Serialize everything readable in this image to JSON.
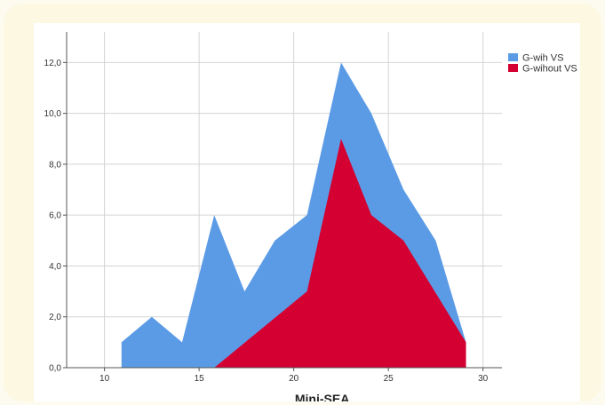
{
  "chart_data": {
    "type": "area",
    "xlabel": "Mini-SEA",
    "ylabel": "",
    "xlim": [
      8,
      31
    ],
    "ylim": [
      0,
      13.2
    ],
    "xticks": [
      "10",
      "15",
      "20",
      "25",
      "30"
    ],
    "xtick_values": [
      10,
      15,
      20,
      25,
      30
    ],
    "yticks": [
      "0,0",
      "2,0",
      "4,0",
      "6,0",
      "8,0",
      "10,0",
      "12,0"
    ],
    "ytick_values": [
      0,
      2,
      4,
      6,
      8,
      10,
      12
    ],
    "grid": true,
    "legend_position": "top-right",
    "series": [
      {
        "name": "G-wih VS",
        "color": "#5b9be6",
        "x": [
          10.9,
          12.5,
          14.1,
          15.8,
          17.4,
          19.0,
          20.7,
          22.5,
          24.1,
          25.8,
          27.5,
          29.1
        ],
        "y": [
          1,
          2,
          1,
          6,
          3,
          5,
          6,
          12,
          10,
          7,
          5,
          1
        ]
      },
      {
        "name": "G-wihout VS",
        "color": "#d40031",
        "x": [
          15.8,
          20.7,
          22.5,
          24.1,
          25.8,
          29.1
        ],
        "y": [
          0,
          3,
          9,
          6,
          5,
          1
        ]
      }
    ]
  }
}
